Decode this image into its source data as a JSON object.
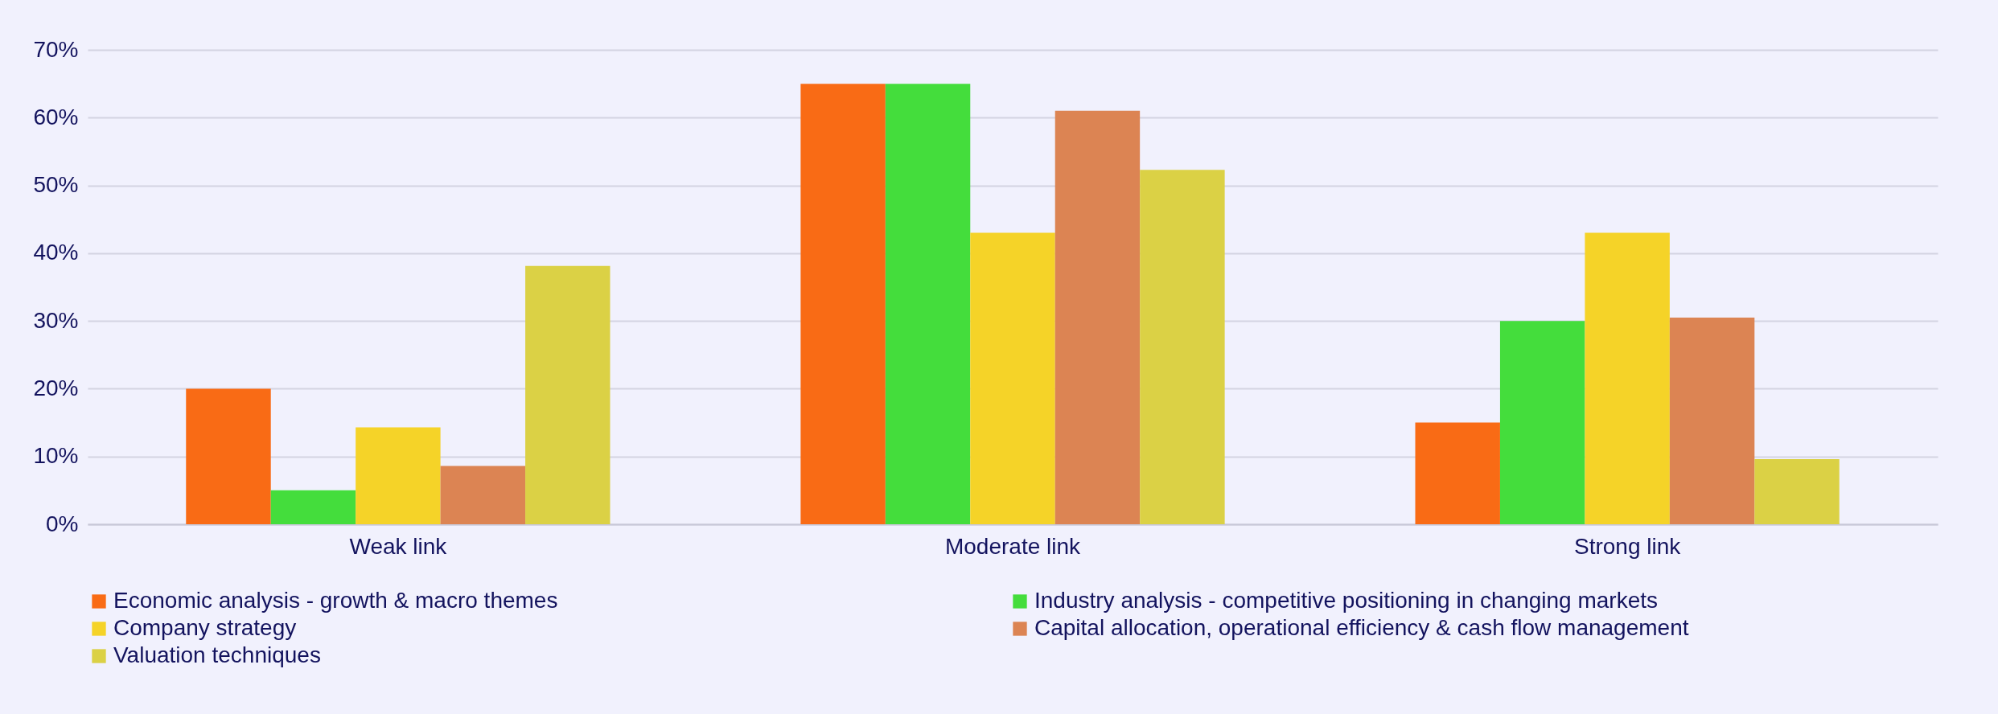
{
  "chart_data": {
    "type": "bar",
    "categories": [
      "Weak link",
      "Moderate link",
      "Strong link"
    ],
    "series": [
      {
        "name": "Economic analysis - growth & macro themes",
        "color": "#f96b15",
        "values": [
          20,
          65,
          15
        ]
      },
      {
        "name": "Industry analysis - competitive positioning in changing markets",
        "color": "#44dd3c",
        "values": [
          5,
          65,
          30
        ]
      },
      {
        "name": "Company strategy",
        "color": "#f5d328",
        "values": [
          14.3,
          43,
          43
        ]
      },
      {
        "name": "Capital allocation, operational efficiency & cash flow management",
        "color": "#dc8453",
        "values": [
          8.6,
          61,
          30.5
        ]
      },
      {
        "name": "Valuation techniques",
        "color": "#dbd145",
        "values": [
          38.1,
          52.3,
          9.6
        ]
      }
    ],
    "ylim": [
      0,
      70
    ],
    "yticks": [
      {
        "value": 0,
        "label": "0%"
      },
      {
        "value": 10,
        "label": "10%"
      },
      {
        "value": 20,
        "label": "20%"
      },
      {
        "value": 30,
        "label": "30%"
      },
      {
        "value": 40,
        "label": "40%"
      },
      {
        "value": 50,
        "label": "50%"
      },
      {
        "value": 60,
        "label": "60%"
      },
      {
        "value": 70,
        "label": "70%"
      }
    ],
    "grid": "y",
    "legend": "bottom"
  }
}
